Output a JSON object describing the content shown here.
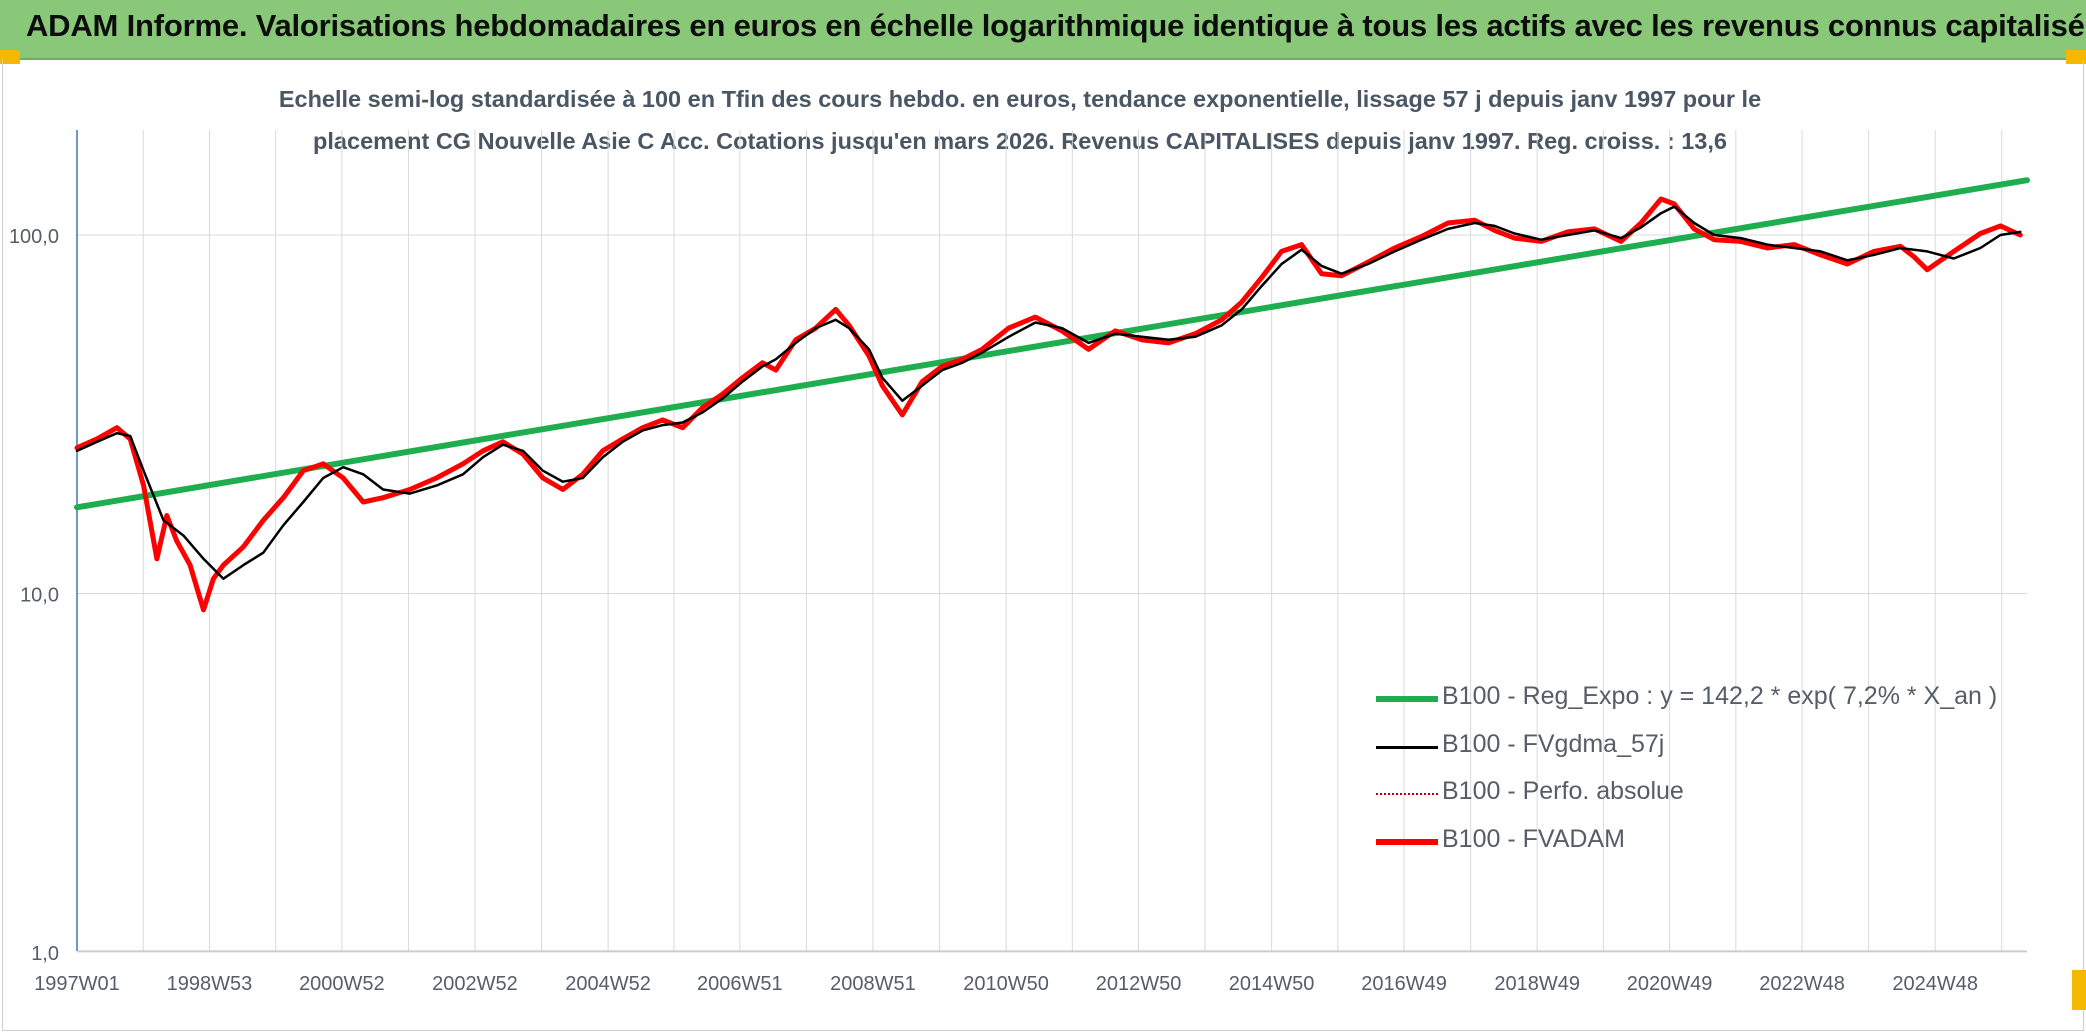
{
  "header": {
    "title": "ADAM Informe. Valorisations hebdomadaires en euros en échelle logarithmique identique à tous les actifs avec les revenus connus capitalisés"
  },
  "colors": {
    "banner": "#88c878",
    "accent_corner": "#f5b800",
    "regression": "#1fae4f",
    "moving_average": "#000000",
    "absolute_perf": "#c00000",
    "fvadam": "#ff0000",
    "grid": "#d9d9d9",
    "axis": "#4472c4"
  },
  "chart_data": {
    "type": "line",
    "title_line1": "Echelle semi-log standardisée à 100 en Tfin des cours hebdo. en euros, tendance exponentielle, lissage 57 j depuis janv 1997 pour le",
    "title_line2": "placement CG Nouvelle Asie C Acc. Cotations jusqu'en mars 2026. Revenus CAPITALISES depuis janv 1997. Reg. croiss. : 13,6",
    "xlabel": "",
    "ylabel": "",
    "y_scale": "log",
    "ylim": [
      1,
      200
    ],
    "y_ticks": [
      1,
      10,
      100
    ],
    "y_tick_labels": [
      "1,0",
      "10,0",
      "100,0"
    ],
    "xlim": [
      1997.0,
      2026.3
    ],
    "x_ticks": [
      1997.0,
      1998.99,
      2000.98,
      2002.98,
      2004.98,
      2006.96,
      2008.96,
      2010.96,
      2012.95,
      2014.95,
      2016.94,
      2018.94,
      2020.93,
      2022.92,
      2024.92
    ],
    "x_tick_labels": [
      "1997W01",
      "1998W53",
      "2000W52",
      "2002W52",
      "2004W52",
      "2006W51",
      "2008W51",
      "2010W50",
      "2012W50",
      "2014W50",
      "2016W49",
      "2018W49",
      "2020W49",
      "2022W48",
      "2024W48"
    ],
    "grid": "vertical-and-horizontal",
    "legend_position": "bottom-right",
    "series": [
      {
        "name": "B100 - Reg_Expo : y = 142,2 * exp( 7,2% *  X_an )",
        "style": "regression",
        "x": [
          1997.0,
          2026.3
        ],
        "values": [
          17.4,
          142.2
        ]
      },
      {
        "name": "B100 - FVgdma_57j",
        "style": "moving-average",
        "x": [
          1997.0,
          1997.3,
          1997.6,
          1997.8,
          1998.0,
          1998.3,
          1998.6,
          1998.9,
          1999.2,
          1999.5,
          1999.8,
          2000.1,
          2000.4,
          2000.7,
          2001.0,
          2001.3,
          2001.6,
          2002.0,
          2002.4,
          2002.8,
          2003.1,
          2003.4,
          2003.7,
          2004.0,
          2004.3,
          2004.6,
          2004.9,
          2005.2,
          2005.5,
          2005.8,
          2006.1,
          2006.4,
          2006.7,
          2007.0,
          2007.3,
          2007.5,
          2007.8,
          2008.1,
          2008.4,
          2008.6,
          2008.9,
          2009.1,
          2009.4,
          2009.7,
          2010.0,
          2010.3,
          2010.6,
          2011.0,
          2011.4,
          2011.8,
          2012.2,
          2012.6,
          2013.0,
          2013.4,
          2013.8,
          2014.2,
          2014.5,
          2014.8,
          2015.1,
          2015.4,
          2015.7,
          2016.0,
          2016.4,
          2016.8,
          2017.2,
          2017.6,
          2018.0,
          2018.3,
          2018.6,
          2019.0,
          2019.4,
          2019.8,
          2020.2,
          2020.5,
          2020.8,
          2021.0,
          2021.3,
          2021.6,
          2022.0,
          2022.4,
          2022.8,
          2023.2,
          2023.6,
          2024.0,
          2024.4,
          2024.8,
          2025.2,
          2025.6,
          2025.9,
          2026.2
        ],
        "values": [
          25.0,
          26.5,
          28.0,
          27.5,
          22.0,
          16.0,
          14.5,
          12.5,
          11.0,
          12.0,
          13.0,
          15.5,
          18.0,
          21.0,
          22.5,
          21.5,
          19.5,
          19.0,
          20.0,
          21.5,
          24.0,
          26.0,
          25.0,
          22.0,
          20.5,
          21.0,
          24.0,
          26.5,
          28.5,
          29.5,
          30.0,
          32.0,
          35.0,
          39.0,
          43.0,
          45.0,
          50.0,
          55.0,
          58.0,
          55.0,
          48.0,
          40.0,
          34.5,
          38.0,
          42.0,
          44.0,
          47.0,
          52.0,
          57.0,
          55.0,
          50.0,
          53.0,
          52.0,
          51.0,
          52.0,
          56.0,
          62.0,
          72.0,
          83.0,
          91.0,
          82.0,
          78.0,
          83.0,
          90.0,
          97.0,
          104.0,
          108.0,
          106.0,
          101.0,
          97.0,
          100.0,
          103.0,
          98.0,
          105.0,
          115.0,
          120.0,
          108.0,
          100.0,
          98.0,
          94.0,
          92.0,
          90.0,
          85.0,
          88.0,
          92.0,
          90.0,
          86.0,
          92.0,
          100.0,
          102.0
        ]
      },
      {
        "name": "B100 - Perfo. absolue",
        "style": "dotted",
        "x": [],
        "values": []
      },
      {
        "name": "B100 - FVADAM",
        "style": "thick",
        "x": [
          1997.0,
          1997.3,
          1997.6,
          1997.8,
          1998.0,
          1998.2,
          1998.35,
          1998.5,
          1998.7,
          1998.9,
          1999.05,
          1999.2,
          1999.5,
          1999.8,
          2000.1,
          2000.4,
          2000.7,
          2001.0,
          2001.3,
          2001.6,
          2002.0,
          2002.4,
          2002.8,
          2003.1,
          2003.4,
          2003.7,
          2004.0,
          2004.3,
          2004.6,
          2004.9,
          2005.2,
          2005.5,
          2005.8,
          2006.1,
          2006.4,
          2006.7,
          2007.0,
          2007.3,
          2007.5,
          2007.8,
          2008.1,
          2008.4,
          2008.6,
          2008.9,
          2009.1,
          2009.4,
          2009.7,
          2010.0,
          2010.3,
          2010.6,
          2011.0,
          2011.4,
          2011.8,
          2012.2,
          2012.6,
          2013.0,
          2013.4,
          2013.8,
          2014.2,
          2014.5,
          2014.8,
          2015.1,
          2015.4,
          2015.7,
          2016.0,
          2016.4,
          2016.8,
          2017.2,
          2017.6,
          2018.0,
          2018.3,
          2018.6,
          2019.0,
          2019.4,
          2019.8,
          2020.2,
          2020.5,
          2020.8,
          2021.0,
          2021.3,
          2021.6,
          2022.0,
          2022.4,
          2022.8,
          2023.2,
          2023.6,
          2024.0,
          2024.4,
          2024.6,
          2024.8,
          2025.2,
          2025.6,
          2025.9,
          2026.2
        ],
        "values": [
          25.5,
          27.0,
          29.0,
          27.0,
          20.0,
          12.5,
          16.5,
          14.0,
          12.0,
          9.0,
          11.0,
          12.0,
          13.5,
          16.0,
          18.5,
          22.0,
          23.0,
          21.0,
          18.0,
          18.5,
          19.5,
          21.0,
          23.0,
          25.0,
          26.5,
          24.5,
          21.0,
          19.5,
          21.5,
          25.0,
          27.0,
          29.0,
          30.5,
          29.0,
          33.0,
          36.0,
          40.0,
          44.0,
          42.0,
          51.0,
          55.0,
          62.0,
          56.0,
          46.0,
          38.0,
          31.5,
          39.0,
          43.0,
          45.0,
          48.0,
          55.0,
          59.0,
          54.0,
          48.0,
          54.0,
          51.0,
          50.0,
          53.0,
          58.0,
          65.0,
          76.0,
          90.0,
          94.0,
          78.0,
          77.0,
          84.0,
          92.0,
          99.0,
          108.0,
          110.0,
          103.0,
          98.0,
          96.0,
          102.0,
          104.0,
          96.0,
          108.0,
          126.0,
          122.0,
          104.0,
          97.0,
          96.0,
          92.0,
          94.0,
          88.0,
          83.0,
          90.0,
          93.0,
          87.0,
          80.0,
          90.0,
          101.0,
          106.0,
          100.0
        ]
      }
    ]
  }
}
